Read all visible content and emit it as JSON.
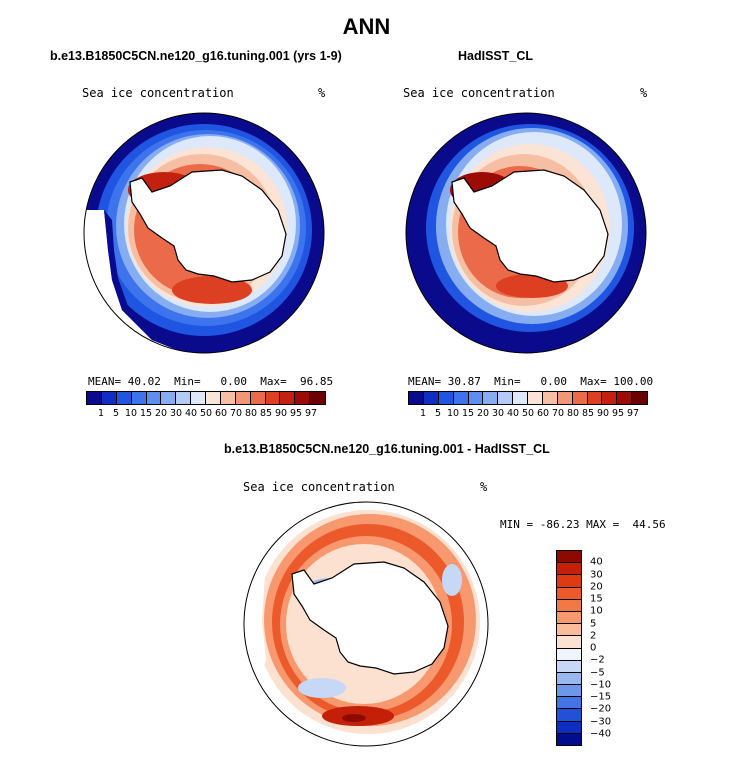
{
  "title": "ANN",
  "panels": [
    {
      "case_title": "b.e13.B1850C5CN.ne120_g16.tuning.001 (yrs 1-9)",
      "variable": "Sea ice concentration",
      "units": "%",
      "stats": {
        "mean_label": "MEAN=",
        "mean": "40.02",
        "min_label": "Min=",
        "min": "0.00",
        "max_label": "Max=",
        "max": "96.85"
      }
    },
    {
      "case_title": "HadISST_CL",
      "variable": "Sea ice concentration",
      "units": "%",
      "stats": {
        "mean_label": "MEAN=",
        "mean": "30.87",
        "min_label": "Min=",
        "min": "0.00",
        "max_label": "Max=",
        "max": "100.00"
      }
    }
  ],
  "colorbar": {
    "levels": [
      "1",
      "5",
      "10",
      "15",
      "20",
      "30",
      "40",
      "50",
      "60",
      "70",
      "80",
      "85",
      "90",
      "95",
      "97"
    ],
    "colors": [
      "#0a0a8c",
      "#0f2fc4",
      "#1f55e0",
      "#3d73ec",
      "#5e8ff0",
      "#86adf2",
      "#b3cbf5",
      "#dde8fa",
      "#fbe3d5",
      "#f6bfa3",
      "#f19676",
      "#ea6a4a",
      "#dc3f22",
      "#c4200f",
      "#9c0b06",
      "#6a0000"
    ]
  },
  "diff_panel": {
    "case_title": "b.e13.B1850C5CN.ne120_g16.tuning.001 - HadISST_CL",
    "variable": "Sea ice concentration",
    "units": "%",
    "minmax_text": "MIN = -86.23 MAX =  44.56",
    "colorbar": {
      "levels": [
        "40",
        "30",
        "20",
        "15",
        "10",
        "5",
        "2",
        "0",
        "−2",
        "−5",
        "−10",
        "−15",
        "−20",
        "−30",
        "−40"
      ],
      "colors": [
        "#8e0a00",
        "#c41f08",
        "#de3a14",
        "#ec5a2c",
        "#f37848",
        "#f7986e",
        "#fbbc9c",
        "#fce0d0",
        "#f0f4fc",
        "#c6d8f6",
        "#9ab8f0",
        "#6e96ea",
        "#4673e4",
        "#2450d8",
        "#0e2ec0",
        "#000e8e"
      ]
    }
  }
}
